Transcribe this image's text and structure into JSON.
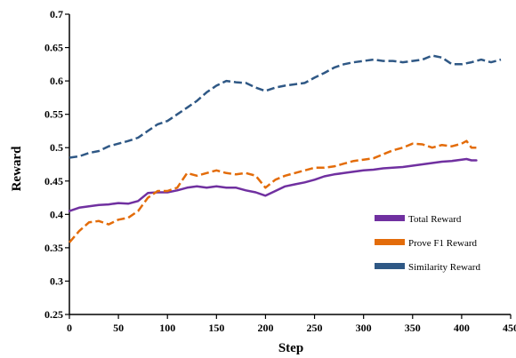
{
  "chart_data": {
    "type": "line",
    "xlabel": "Step",
    "ylabel": "Reward",
    "xlim": [
      0,
      450
    ],
    "ylim": [
      0.25,
      0.7
    ],
    "xticks": [
      0,
      50,
      100,
      150,
      200,
      250,
      300,
      350,
      400,
      450
    ],
    "yticks": [
      0.25,
      0.3,
      0.35,
      0.4,
      0.45,
      0.5,
      0.55,
      0.6,
      0.65,
      0.7
    ],
    "grid": false,
    "legend_position": "right",
    "series": [
      {
        "name": "Total Reward",
        "color": "#7030a0",
        "dash": "solid",
        "x": [
          0,
          10,
          20,
          30,
          40,
          50,
          60,
          70,
          80,
          90,
          100,
          110,
          120,
          130,
          140,
          150,
          160,
          170,
          180,
          190,
          200,
          210,
          220,
          230,
          240,
          250,
          260,
          270,
          280,
          290,
          300,
          310,
          320,
          330,
          340,
          350,
          360,
          370,
          380,
          390,
          400,
          405,
          410,
          415
        ],
        "y": [
          0.405,
          0.41,
          0.412,
          0.414,
          0.415,
          0.417,
          0.416,
          0.42,
          0.432,
          0.433,
          0.433,
          0.436,
          0.44,
          0.442,
          0.44,
          0.442,
          0.44,
          0.44,
          0.436,
          0.433,
          0.428,
          0.435,
          0.442,
          0.445,
          0.448,
          0.452,
          0.457,
          0.46,
          0.462,
          0.464,
          0.466,
          0.467,
          0.469,
          0.47,
          0.471,
          0.473,
          0.475,
          0.477,
          0.479,
          0.48,
          0.482,
          0.483,
          0.481,
          0.481
        ]
      },
      {
        "name": "Prove F1 Reward",
        "color": "#e36c0a",
        "dash": "dashed",
        "x": [
          0,
          10,
          20,
          30,
          40,
          50,
          60,
          70,
          80,
          90,
          100,
          110,
          120,
          130,
          140,
          150,
          160,
          170,
          180,
          190,
          200,
          210,
          220,
          230,
          240,
          250,
          260,
          270,
          280,
          290,
          300,
          310,
          320,
          330,
          340,
          350,
          360,
          370,
          380,
          390,
          400,
          405,
          410,
          415
        ],
        "y": [
          0.358,
          0.375,
          0.388,
          0.39,
          0.385,
          0.392,
          0.395,
          0.405,
          0.425,
          0.435,
          0.435,
          0.44,
          0.462,
          0.458,
          0.462,
          0.466,
          0.462,
          0.46,
          0.462,
          0.458,
          0.44,
          0.452,
          0.458,
          0.462,
          0.466,
          0.47,
          0.47,
          0.472,
          0.476,
          0.48,
          0.482,
          0.484,
          0.49,
          0.496,
          0.5,
          0.506,
          0.505,
          0.5,
          0.504,
          0.502,
          0.506,
          0.51,
          0.5,
          0.5
        ]
      },
      {
        "name": "Similarity Reward",
        "color": "#2f5885",
        "dash": "dashed",
        "x": [
          0,
          10,
          20,
          30,
          40,
          50,
          60,
          70,
          80,
          90,
          100,
          110,
          120,
          130,
          140,
          150,
          160,
          170,
          180,
          190,
          200,
          210,
          220,
          230,
          240,
          250,
          260,
          270,
          280,
          290,
          300,
          310,
          320,
          330,
          340,
          350,
          360,
          370,
          380,
          390,
          400,
          410,
          420,
          430,
          440
        ],
        "y": [
          0.485,
          0.487,
          0.492,
          0.495,
          0.502,
          0.506,
          0.51,
          0.515,
          0.525,
          0.535,
          0.54,
          0.55,
          0.56,
          0.57,
          0.583,
          0.593,
          0.6,
          0.598,
          0.597,
          0.59,
          0.585,
          0.59,
          0.593,
          0.595,
          0.597,
          0.605,
          0.612,
          0.62,
          0.625,
          0.628,
          0.63,
          0.632,
          0.63,
          0.63,
          0.628,
          0.63,
          0.632,
          0.638,
          0.635,
          0.625,
          0.625,
          0.628,
          0.632,
          0.628,
          0.632
        ]
      }
    ]
  }
}
